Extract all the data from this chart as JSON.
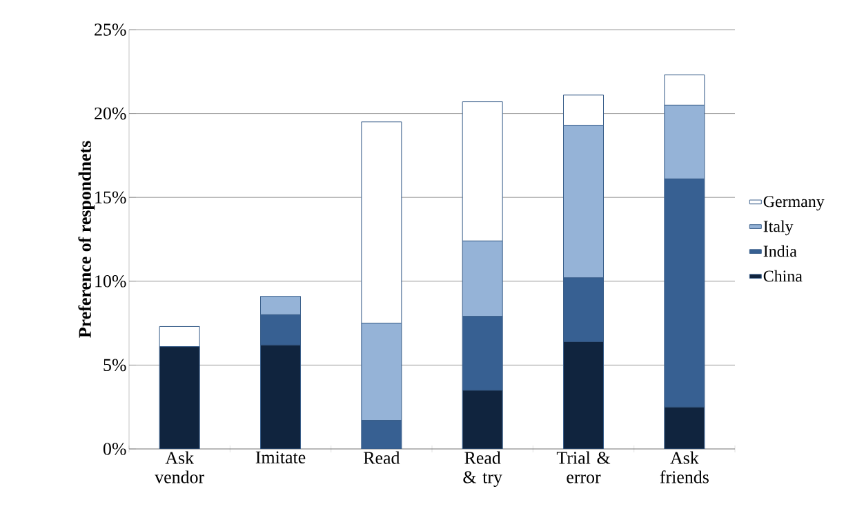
{
  "chart_data": {
    "type": "bar",
    "stacked": true,
    "ylabel": "Preference of respondnets",
    "categories": [
      "Ask vendor",
      "Imitate",
      "Read",
      "Read & try",
      "Trial & error",
      "Ask friends"
    ],
    "series": [
      {
        "name": "China",
        "color": "#10243e",
        "values": [
          6.1,
          6.2,
          0,
          3.5,
          6.4,
          2.5
        ]
      },
      {
        "name": "India",
        "color": "#376092",
        "values": [
          0,
          1.8,
          1.7,
          4.4,
          3.8,
          13.6
        ]
      },
      {
        "name": "Italy",
        "color": "#95b3d7",
        "values": [
          0,
          1.1,
          5.8,
          4.5,
          9.1,
          4.4
        ]
      },
      {
        "name": "Germany",
        "color": "#ffffff",
        "values": [
          1.2,
          0,
          12.0,
          8.3,
          1.8,
          1.8
        ]
      }
    ],
    "ylim": [
      0,
      25
    ],
    "yticks": [
      {
        "value": 0,
        "label": "0%"
      },
      {
        "value": 5,
        "label": "5%"
      },
      {
        "value": 10,
        "label": "10%"
      },
      {
        "value": 15,
        "label": "15%"
      },
      {
        "value": 20,
        "label": "20%"
      },
      {
        "value": 25,
        "label": "25%"
      }
    ],
    "grid": "y",
    "legend": "right"
  }
}
